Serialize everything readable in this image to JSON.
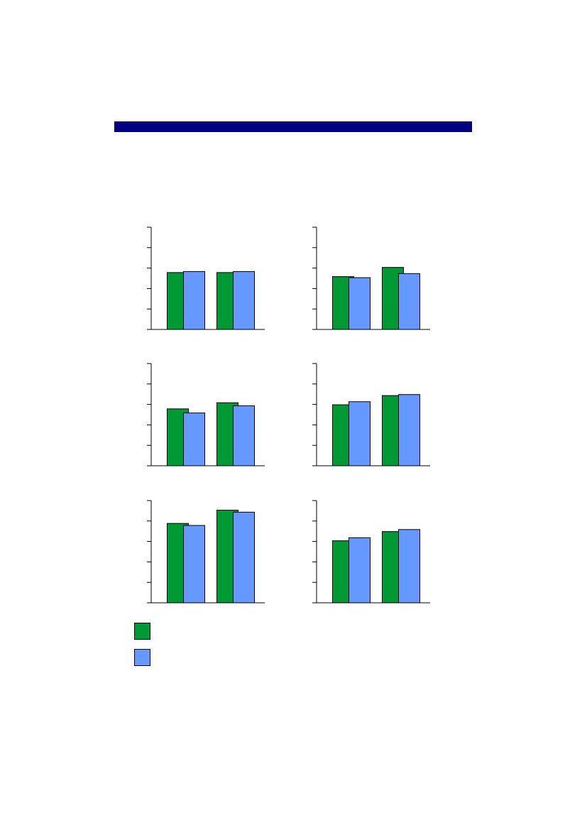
{
  "header": {
    "color": "#000080"
  },
  "colors": {
    "series1": "#009933",
    "series2": "#6699ff",
    "axis": "#000000"
  },
  "chart_data": [
    {
      "type": "bar",
      "title": "",
      "categories": [
        "",
        ""
      ],
      "ylim": [
        0,
        5
      ],
      "series": [
        {
          "name": "",
          "values": [
            2.8,
            2.8
          ]
        },
        {
          "name": "",
          "values": [
            2.85,
            2.85
          ]
        }
      ]
    },
    {
      "type": "bar",
      "title": "",
      "categories": [
        "",
        ""
      ],
      "ylim": [
        0,
        5
      ],
      "series": [
        {
          "name": "",
          "values": [
            2.6,
            3.05
          ]
        },
        {
          "name": "",
          "values": [
            2.55,
            2.75
          ]
        }
      ]
    },
    {
      "type": "bar",
      "title": "",
      "categories": [
        "",
        ""
      ],
      "ylim": [
        0,
        5
      ],
      "series": [
        {
          "name": "",
          "values": [
            2.8,
            3.1
          ]
        },
        {
          "name": "",
          "values": [
            2.6,
            2.95
          ]
        }
      ]
    },
    {
      "type": "bar",
      "title": "",
      "categories": [
        "",
        ""
      ],
      "ylim": [
        0,
        5
      ],
      "series": [
        {
          "name": "",
          "values": [
            3.0,
            3.45
          ]
        },
        {
          "name": "",
          "values": [
            3.15,
            3.5
          ]
        }
      ]
    },
    {
      "type": "bar",
      "title": "",
      "categories": [
        "",
        ""
      ],
      "ylim": [
        0,
        5
      ],
      "series": [
        {
          "name": "",
          "values": [
            3.9,
            4.55
          ]
        },
        {
          "name": "",
          "values": [
            3.8,
            4.45
          ]
        }
      ]
    },
    {
      "type": "bar",
      "title": "",
      "categories": [
        "",
        ""
      ],
      "ylim": [
        0,
        5
      ],
      "series": [
        {
          "name": "",
          "values": [
            3.05,
            3.5
          ]
        },
        {
          "name": "",
          "values": [
            3.2,
            3.6
          ]
        }
      ]
    }
  ],
  "legend": {
    "items": [
      {
        "label": ""
      },
      {
        "label": ""
      }
    ]
  }
}
